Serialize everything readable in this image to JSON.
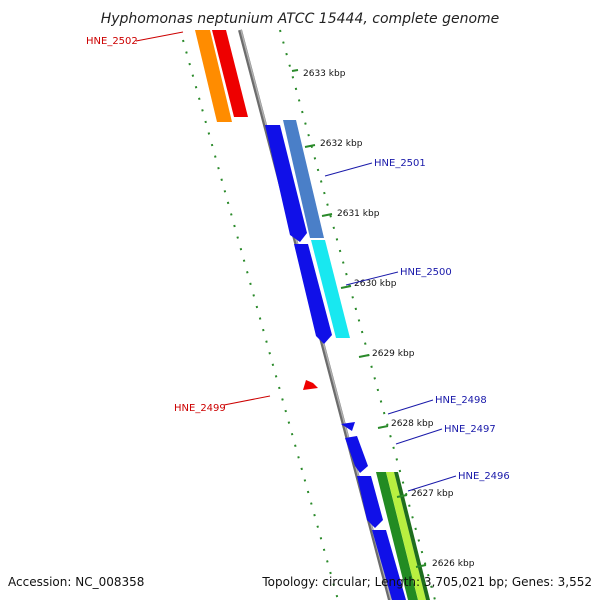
{
  "title": "Hyphomonas neptunium ATCC 15444, complete genome",
  "footer": {
    "accession": "Accession: NC_008358",
    "topology": "Topology: circular; Length: 3,705,021 bp; Genes: 3,552"
  },
  "ticks": [
    "2633 kbp",
    "2632 kbp",
    "2631 kbp",
    "2630 kbp",
    "2629 kbp",
    "2628 kbp",
    "2627 kbp",
    "2626 kbp"
  ],
  "genes": {
    "forward": [
      "HNE_2501",
      "HNE_2500",
      "HNE_2498",
      "HNE_2497",
      "HNE_2496"
    ],
    "reverse": [
      "HNE_2502",
      "HNE_2499"
    ]
  },
  "colors": {
    "forward_label": "#1a1aaa",
    "reverse_label": "#cc0000",
    "cds_blue": "#1010e8",
    "cds_steel": "#4a7fc8",
    "cds_cyan": "#18e8f0",
    "cds_red": "#ee0000",
    "cds_orange": "#ff8c00",
    "cds_green": "#228b22",
    "cds_lightgreen": "#b8f040",
    "backbone": "#8c8c8c",
    "gc_ticks": "#2a8a2a"
  }
}
